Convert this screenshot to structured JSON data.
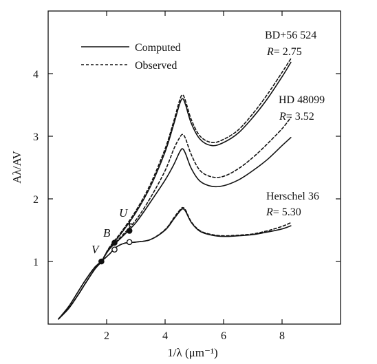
{
  "chart_data": {
    "type": "line",
    "xlabel": "1/λ (μm⁻¹)",
    "ylabel": "Aλ/AV",
    "xlim": [
      0,
      10
    ],
    "ylim": [
      0,
      5
    ],
    "x_ticks": [
      {
        "value": 2,
        "label": "2"
      },
      {
        "value": 4,
        "label": "4"
      },
      {
        "value": 6,
        "label": "6"
      },
      {
        "value": 8,
        "label": "8"
      }
    ],
    "y_ticks": [
      {
        "value": 1,
        "label": "1"
      },
      {
        "value": 2,
        "label": "2"
      },
      {
        "value": 3,
        "label": "3"
      },
      {
        "value": 4,
        "label": "4"
      }
    ],
    "grid": false,
    "legend": {
      "placement": "top-left",
      "entries": [
        {
          "label": "Computed",
          "style": "solid"
        },
        {
          "label": "Observed",
          "style": "dashed"
        }
      ]
    },
    "curve_labels": [
      {
        "name": "BD+56 524",
        "r_label": "R",
        "r_value": "= 2.75"
      },
      {
        "name": "HD 48099",
        "r_label": "R",
        "r_value": "= 3.52"
      },
      {
        "name": "Herschel 36",
        "r_label": "R",
        "r_value": "= 5.30"
      }
    ],
    "band_labels": [
      {
        "letter": "V",
        "x": 1.82,
        "y": 0.98
      },
      {
        "letter": "B",
        "x": 2.27,
        "y": 1.3
      },
      {
        "letter": "U",
        "x": 2.78,
        "y": 1.6
      }
    ],
    "series": [
      {
        "style": "solid",
        "group": "BD+56 524",
        "x": [
          0.35,
          0.7,
          1.0,
          1.3,
          1.6,
          1.82,
          2.1,
          2.5,
          3.0,
          3.5,
          4.0,
          4.3,
          4.5,
          4.6,
          4.7,
          4.9,
          5.2,
          5.6,
          6.0,
          6.5,
          7.0,
          7.5,
          8.0,
          8.3
        ],
        "y": [
          0.08,
          0.25,
          0.45,
          0.67,
          0.88,
          1.0,
          1.22,
          1.45,
          1.78,
          2.2,
          2.75,
          3.2,
          3.52,
          3.6,
          3.5,
          3.2,
          2.95,
          2.85,
          2.9,
          3.05,
          3.3,
          3.6,
          3.95,
          4.18
        ]
      },
      {
        "style": "dashed",
        "group": "BD+56 524",
        "x": [
          0.35,
          0.7,
          1.0,
          1.3,
          1.6,
          1.82,
          2.1,
          2.5,
          3.0,
          3.5,
          4.0,
          4.3,
          4.5,
          4.6,
          4.7,
          4.9,
          5.2,
          5.6,
          6.0,
          6.5,
          7.0,
          7.5,
          8.0,
          8.3
        ],
        "y": [
          0.08,
          0.25,
          0.45,
          0.67,
          0.88,
          1.0,
          1.23,
          1.47,
          1.81,
          2.24,
          2.8,
          3.25,
          3.58,
          3.66,
          3.56,
          3.26,
          3.0,
          2.9,
          2.95,
          3.1,
          3.36,
          3.67,
          4.02,
          4.24
        ]
      },
      {
        "style": "solid",
        "group": "HD 48099",
        "x": [
          0.35,
          0.7,
          1.0,
          1.3,
          1.6,
          1.82,
          2.1,
          2.5,
          3.0,
          3.5,
          4.0,
          4.3,
          4.5,
          4.6,
          4.7,
          4.9,
          5.2,
          5.6,
          6.0,
          6.5,
          7.0,
          7.5,
          8.0,
          8.3
        ],
        "y": [
          0.08,
          0.25,
          0.45,
          0.67,
          0.88,
          1.0,
          1.2,
          1.38,
          1.62,
          1.95,
          2.3,
          2.55,
          2.75,
          2.8,
          2.72,
          2.48,
          2.28,
          2.2,
          2.21,
          2.3,
          2.45,
          2.63,
          2.85,
          2.98
        ]
      },
      {
        "style": "dashed",
        "group": "HD 48099",
        "x": [
          0.35,
          0.7,
          1.0,
          1.3,
          1.6,
          1.82,
          2.1,
          2.5,
          3.0,
          3.5,
          4.0,
          4.3,
          4.5,
          4.6,
          4.7,
          4.9,
          5.2,
          5.6,
          6.0,
          6.5,
          7.0,
          7.5,
          8.0,
          8.3
        ],
        "y": [
          0.08,
          0.25,
          0.45,
          0.67,
          0.88,
          1.0,
          1.21,
          1.4,
          1.66,
          2.02,
          2.45,
          2.8,
          2.98,
          3.03,
          2.96,
          2.7,
          2.45,
          2.35,
          2.36,
          2.48,
          2.66,
          2.88,
          3.12,
          3.3
        ]
      },
      {
        "style": "solid",
        "group": "Herschel 36",
        "x": [
          0.35,
          0.7,
          1.0,
          1.3,
          1.6,
          1.82,
          2.1,
          2.3,
          2.6,
          3.0,
          3.5,
          4.0,
          4.3,
          4.5,
          4.6,
          4.7,
          4.9,
          5.2,
          5.6,
          6.0,
          6.5,
          7.0,
          7.5,
          8.0,
          8.3
        ],
        "y": [
          0.08,
          0.28,
          0.5,
          0.72,
          0.91,
          1.0,
          1.12,
          1.22,
          1.29,
          1.31,
          1.35,
          1.5,
          1.68,
          1.8,
          1.84,
          1.8,
          1.62,
          1.48,
          1.42,
          1.4,
          1.41,
          1.43,
          1.47,
          1.52,
          1.57
        ]
      },
      {
        "style": "dashed",
        "group": "Herschel 36",
        "x": [
          0.35,
          0.7,
          1.0,
          1.3,
          1.6,
          1.82,
          2.1,
          2.3,
          2.6,
          3.0,
          3.5,
          4.0,
          4.3,
          4.5,
          4.6,
          4.7,
          4.9,
          5.2,
          5.6,
          6.0,
          6.5,
          7.0,
          7.5,
          8.0,
          8.3
        ],
        "y": [
          0.08,
          0.28,
          0.5,
          0.72,
          0.91,
          1.0,
          1.12,
          1.22,
          1.29,
          1.31,
          1.35,
          1.51,
          1.7,
          1.82,
          1.86,
          1.82,
          1.63,
          1.49,
          1.43,
          1.41,
          1.42,
          1.44,
          1.49,
          1.56,
          1.62
        ]
      }
    ],
    "markers": [
      {
        "x": 1.82,
        "y": 1.0,
        "fill": "filled"
      },
      {
        "x": 2.27,
        "y": 1.3,
        "fill": "filled"
      },
      {
        "x": 2.27,
        "y": 1.19,
        "fill": "open"
      },
      {
        "x": 2.78,
        "y": 1.49,
        "fill": "filled"
      },
      {
        "x": 2.78,
        "y": 1.31,
        "fill": "open"
      },
      {
        "x": 2.78,
        "y": 1.6,
        "fill": "plus"
      }
    ]
  }
}
